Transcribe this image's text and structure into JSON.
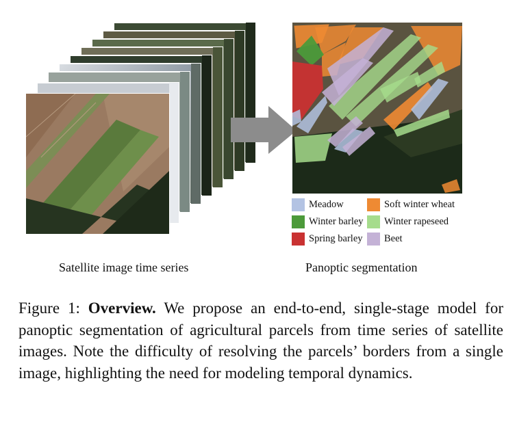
{
  "figure": {
    "left_caption": "Satellite image time series",
    "right_caption": "Panoptic segmentation",
    "legend": [
      {
        "label": "Meadow",
        "color": "#b3c3e3"
      },
      {
        "label": "Soft winter wheat",
        "color": "#ee8a33"
      },
      {
        "label": "Winter barley",
        "color": "#4c9a3a"
      },
      {
        "label": "Winter rapeseed",
        "color": "#a6dc8c"
      },
      {
        "label": "Spring barley",
        "color": "#c93232"
      },
      {
        "label": "Beet",
        "color": "#c4b2d6"
      }
    ]
  },
  "caption": {
    "label": "Figure 1:",
    "title": "Overview.",
    "text": "We propose an end-to-end, single-stage model for panoptic segmentation of agricultural parcels from time series of satellite images. Note the difficulty of resolving the parcels’ borders from a single image, highlighting the need for modeling temporal dynamics."
  }
}
